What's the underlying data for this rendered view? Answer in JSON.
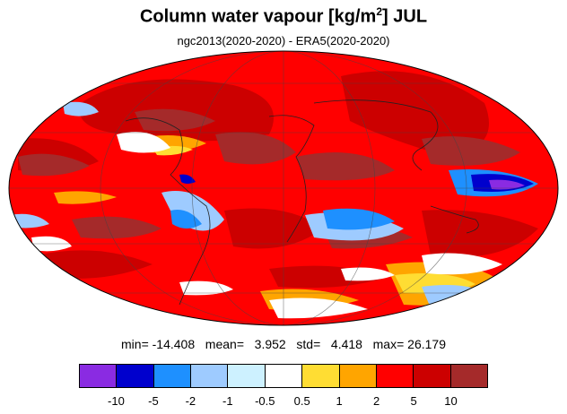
{
  "title_main": "Column water vapour [kg/m",
  "title_sup": "2",
  "title_end": "] JUL",
  "subtitle": "ngc2013(2020-2020) - ERA5(2020-2020)",
  "stats": {
    "min_label": "min=",
    "min": "-14.408",
    "mean_label": "mean=",
    "mean": "3.952",
    "std_label": "std=",
    "std": "4.418",
    "max_label": "max=",
    "max": "26.179"
  },
  "colorbar": {
    "colors": [
      "#8a2be2",
      "#0000cd",
      "#1e90ff",
      "#9ecbff",
      "#cdf1ff",
      "#ffffff",
      "#ffdd33",
      "#ffa500",
      "#ff0000",
      "#cc0000",
      "#a52a2a"
    ],
    "labels": [
      "-10",
      "-5",
      "-2",
      "-1",
      "-0.5",
      "0.5",
      "1",
      "2",
      "5",
      "10"
    ]
  }
}
